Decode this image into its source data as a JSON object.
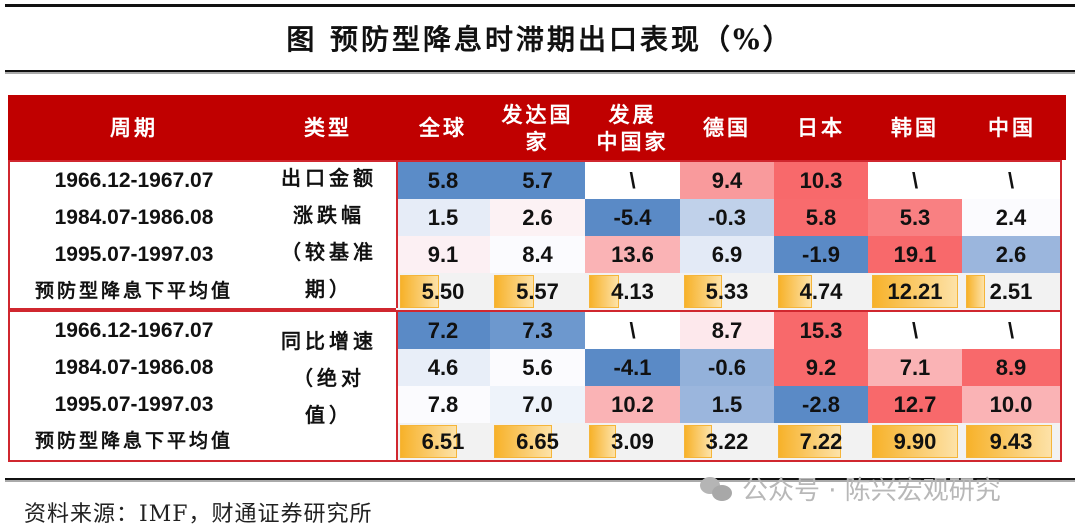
{
  "title": "图  预防型降息时滞期出口表现（%）",
  "headers": [
    "周期",
    "类型",
    "全球",
    "发达国\n家",
    "发展\n中国家",
    "德国",
    "日本",
    "韩国",
    "中国"
  ],
  "header_display": {
    "developed": [
      "发达国",
      "家"
    ],
    "developing": [
      "发展",
      "中国家"
    ]
  },
  "sections": [
    {
      "type_label": [
        "出口金额",
        "涨跌幅",
        "（较基准",
        "期）"
      ],
      "rows": [
        {
          "period": "1966.12-1967.07",
          "values": [
            "5.8",
            "5.7",
            "\\",
            "9.4",
            "10.3",
            "\\",
            "\\"
          ],
          "colors": [
            "#5b8cc8",
            "#5b8cc8",
            "#ffffff",
            "#f99a9c",
            "#f8696b",
            "#ffffff",
            "#ffffff"
          ]
        },
        {
          "period": "1984.07-1986.08",
          "values": [
            "1.5",
            "2.6",
            "-5.4",
            "-0.3",
            "5.8",
            "5.3",
            "2.4"
          ],
          "colors": [
            "#e6ecf7",
            "#fcf2f4",
            "#5a8ac6",
            "#c0d1ea",
            "#f86b6d",
            "#f98082",
            "#fbfbfe"
          ]
        },
        {
          "period": "1995.07-1997.03",
          "values": [
            "9.1",
            "8.4",
            "13.6",
            "6.9",
            "-1.9",
            "19.1",
            "2.6"
          ],
          "colors": [
            "#fcf0f3",
            "#fbfbfe",
            "#fab3b5",
            "#e3eaf6",
            "#5a8ac6",
            "#f8696b",
            "#9bb6dd"
          ]
        }
      ],
      "avg": {
        "label": "预防型降息下平均值",
        "values": [
          "5.50",
          "5.57",
          "4.13",
          "5.33",
          "4.74",
          "12.21",
          "2.51"
        ],
        "bar_pct": [
          45,
          46,
          34,
          44,
          39,
          100,
          21
        ]
      }
    },
    {
      "type_label": [
        "同比增速",
        "（绝对",
        "值）"
      ],
      "rows": [
        {
          "period": "1966.12-1967.07",
          "values": [
            "7.2",
            "7.3",
            "\\",
            "8.7",
            "15.3",
            "\\",
            "\\"
          ],
          "colors": [
            "#5a8ac6",
            "#6d98ce",
            "#ffffff",
            "#fde8ec",
            "#f8696b",
            "#ffffff",
            "#ffffff"
          ]
        },
        {
          "period": "1984.07-1986.08",
          "values": [
            "4.6",
            "5.6",
            "-4.1",
            "-0.6",
            "9.2",
            "7.1",
            "8.9"
          ],
          "colors": [
            "#e8eef8",
            "#fbfbfe",
            "#5a8ac6",
            "#93b1da",
            "#f8696b",
            "#fab3b5",
            "#f8696b"
          ]
        },
        {
          "period": "1995.07-1997.03",
          "values": [
            "7.8",
            "7.0",
            "10.2",
            "1.5",
            "-2.8",
            "12.7",
            "10.0"
          ],
          "colors": [
            "#fbfbfe",
            "#eef3fa",
            "#fab3b5",
            "#9bb6dd",
            "#5a8ac6",
            "#f8696b",
            "#fab3b5"
          ]
        }
      ],
      "avg": {
        "label": "预防型降息下平均值",
        "values": [
          "6.51",
          "6.65",
          "3.09",
          "3.22",
          "7.22",
          "9.90",
          "9.43"
        ],
        "bar_pct": [
          66,
          67,
          31,
          33,
          73,
          100,
          95
        ]
      }
    }
  ],
  "source": "资料来源：IMF，财通证券研究所",
  "watermark": "公众号 · 陈兴宏观研究",
  "colors": {
    "header_bg": "#c00000",
    "border": "#d0272f",
    "avg_bar": "#f7b22a"
  }
}
